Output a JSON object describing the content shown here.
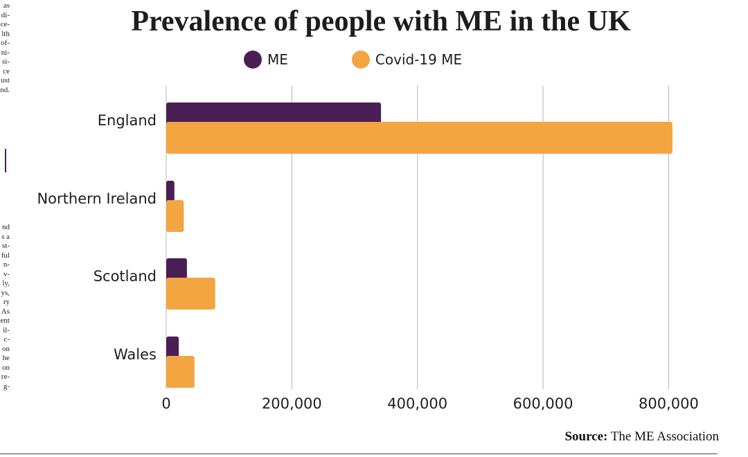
{
  "article": {
    "column_top_fragments": "as\ndi-\nce-\nlth\nof-\nni-\nsi-\nce\nust\nnd.",
    "column_bottom_fragments": "nd\ns a\nst-\nful\nn-\nv-\nly,\nys,\nry\nAs\nent\nil-\nc-\non\nhe\non\nre-\ng-"
  },
  "chart_data": {
    "type": "bar",
    "orientation": "horizontal",
    "title": "Prevalence of people with ME in the UK",
    "categories": [
      "England",
      "Northern Ireland",
      "Scotland",
      "Wales"
    ],
    "series": [
      {
        "name": "ME",
        "color": "#4a1f56",
        "values": [
          342000,
          13000,
          33000,
          20000
        ]
      },
      {
        "name": "Covid-19 ME",
        "color": "#f2a541",
        "values": [
          806000,
          28000,
          78000,
          45000
        ]
      }
    ],
    "xlim": [
      0,
      805000
    ],
    "xticks": [
      0,
      200000,
      400000,
      600000,
      800000
    ],
    "xtick_labels": [
      "0",
      "200,000",
      "400,000",
      "600,000",
      "800,000"
    ],
    "grid": "vertical",
    "legend_position": "top",
    "gridline_color": "#b5b5b5"
  },
  "source": {
    "label": "Source:",
    "text": "The ME Association"
  }
}
